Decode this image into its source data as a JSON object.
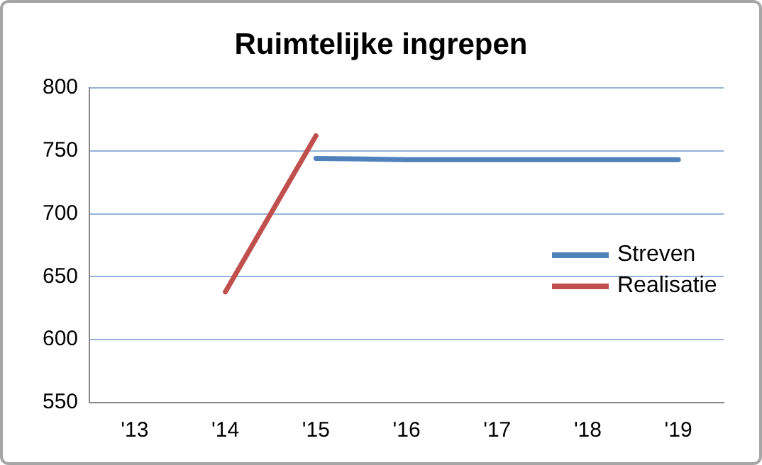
{
  "chart_data": {
    "type": "line",
    "title": "Ruimtelijke ingrepen",
    "categories": [
      "'13",
      "'14",
      "'15",
      "'16",
      "'17",
      "'18",
      "'19"
    ],
    "series": [
      {
        "name": "Streven",
        "color": "#4f81bd",
        "values": [
          null,
          null,
          744,
          743,
          743,
          743,
          743
        ]
      },
      {
        "name": "Realisatie",
        "color": "#c0504d",
        "values": [
          null,
          638,
          762,
          null,
          null,
          null,
          null
        ]
      }
    ],
    "ylim": [
      550,
      800
    ],
    "yticks": [
      550,
      600,
      650,
      700,
      750,
      800
    ],
    "grid": "y",
    "legend": "right",
    "marker": "none",
    "line_style": "solid"
  }
}
